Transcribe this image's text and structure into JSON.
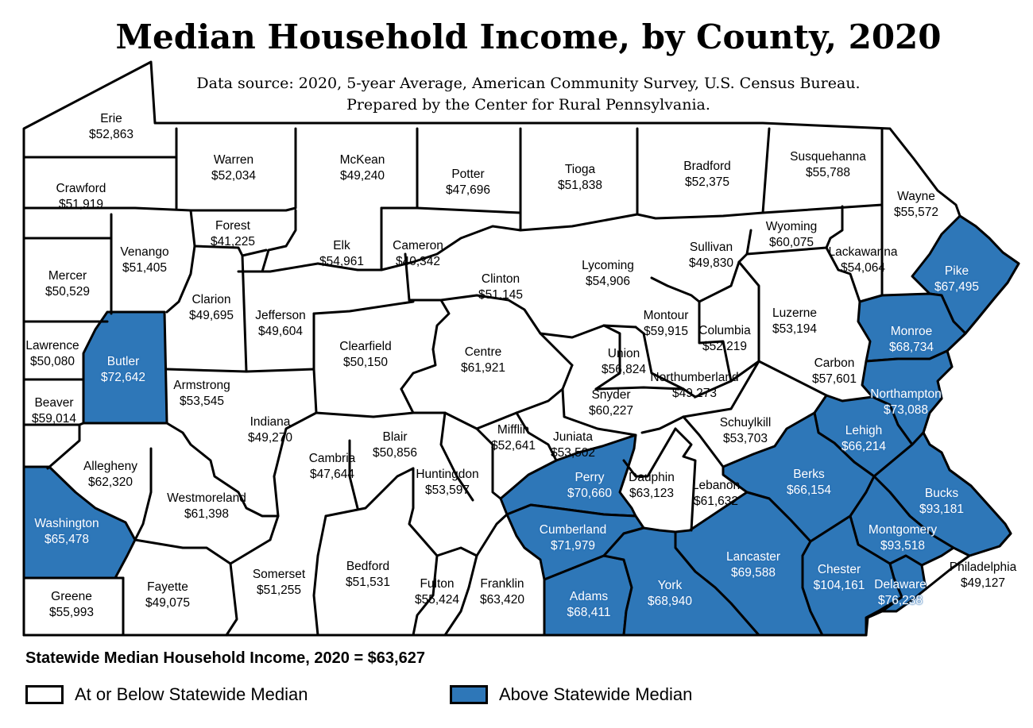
{
  "title": "Median Household Income, by County, 2020",
  "subtitle_line1": "Data source: 2020, 5-year Average, American Community Survey, U.S. Census Bureau.",
  "subtitle_line2": "Prepared by the Center for Rural Pennsylvania.",
  "statewide": "Statewide Median Household Income, 2020 = $63,627",
  "colors": {
    "below": "#ffffff",
    "above": "#2e77b8",
    "border": "#000000"
  },
  "legend": {
    "below": {
      "label": "At or Below Statewide Median",
      "color": "#ffffff"
    },
    "above": {
      "label": "Above Statewide Median",
      "color": "#2e77b8"
    }
  },
  "counties": [
    {
      "name": "Erie",
      "income": "$52,863",
      "above": false
    },
    {
      "name": "Crawford",
      "income": "$51,919",
      "above": false
    },
    {
      "name": "Warren",
      "income": "$52,034",
      "above": false
    },
    {
      "name": "McKean",
      "income": "$49,240",
      "above": false
    },
    {
      "name": "Potter",
      "income": "$47,696",
      "above": false
    },
    {
      "name": "Tioga",
      "income": "$51,838",
      "above": false
    },
    {
      "name": "Bradford",
      "income": "$52,375",
      "above": false
    },
    {
      "name": "Susquehanna",
      "income": "$55,788",
      "above": false
    },
    {
      "name": "Wayne",
      "income": "$55,572",
      "above": false
    },
    {
      "name": "Mercer",
      "income": "$50,529",
      "above": false
    },
    {
      "name": "Venango",
      "income": "$51,405",
      "above": false
    },
    {
      "name": "Forest",
      "income": "$41,225",
      "above": false
    },
    {
      "name": "Elk",
      "income": "$54,961",
      "above": false
    },
    {
      "name": "Cameron",
      "income": "$40,342",
      "above": false
    },
    {
      "name": "Clinton",
      "income": "$51,145",
      "above": false
    },
    {
      "name": "Lycoming",
      "income": "$54,906",
      "above": false
    },
    {
      "name": "Sullivan",
      "income": "$49,830",
      "above": false
    },
    {
      "name": "Wyoming",
      "income": "$60,075",
      "above": false
    },
    {
      "name": "Lackawanna",
      "income": "$54,064",
      "above": false
    },
    {
      "name": "Pike",
      "income": "$67,495",
      "above": true
    },
    {
      "name": "Lawrence",
      "income": "$50,080",
      "above": false
    },
    {
      "name": "Butler",
      "income": "$72,642",
      "above": true
    },
    {
      "name": "Clarion",
      "income": "$49,695",
      "above": false
    },
    {
      "name": "Jefferson",
      "income": "$49,604",
      "above": false
    },
    {
      "name": "Clearfield",
      "income": "$50,150",
      "above": false
    },
    {
      "name": "Centre",
      "income": "$61,921",
      "above": false
    },
    {
      "name": "Montour",
      "income": "$59,915",
      "above": false
    },
    {
      "name": "Columbia",
      "income": "$52,219",
      "above": false
    },
    {
      "name": "Luzerne",
      "income": "$53,194",
      "above": false
    },
    {
      "name": "Monroe",
      "income": "$68,734",
      "above": true
    },
    {
      "name": "Beaver",
      "income": "$59,014",
      "above": false
    },
    {
      "name": "Armstrong",
      "income": "$53,545",
      "above": false
    },
    {
      "name": "Union",
      "income": "$56,824",
      "above": false
    },
    {
      "name": "Northumberland",
      "income": "$49,273",
      "above": false
    },
    {
      "name": "Carbon",
      "income": "$57,601",
      "above": false
    },
    {
      "name": "Snyder",
      "income": "$60,227",
      "above": false
    },
    {
      "name": "Northampton",
      "income": "$73,088",
      "above": true
    },
    {
      "name": "Indiana",
      "income": "$49,270",
      "above": false
    },
    {
      "name": "Mifflin",
      "income": "$52,641",
      "above": false
    },
    {
      "name": "Schuylkill",
      "income": "$53,703",
      "above": false
    },
    {
      "name": "Lehigh",
      "income": "$66,214",
      "above": true
    },
    {
      "name": "Allegheny",
      "income": "$62,320",
      "above": false
    },
    {
      "name": "Blair",
      "income": "$50,856",
      "above": false
    },
    {
      "name": "Juniata",
      "income": "$53,502",
      "above": false
    },
    {
      "name": "Cambria",
      "income": "$47,644",
      "above": false
    },
    {
      "name": "Huntingdon",
      "income": "$53,597",
      "above": false
    },
    {
      "name": "Perry",
      "income": "$70,660",
      "above": true
    },
    {
      "name": "Dauphin",
      "income": "$63,123",
      "above": false
    },
    {
      "name": "Berks",
      "income": "$66,154",
      "above": true
    },
    {
      "name": "Bucks",
      "income": "$93,181",
      "above": true
    },
    {
      "name": "Westmoreland",
      "income": "$61,398",
      "above": false
    },
    {
      "name": "Lebanon",
      "income": "$61,632",
      "above": false
    },
    {
      "name": "Washington",
      "income": "$65,478",
      "above": true
    },
    {
      "name": "Cumberland",
      "income": "$71,979",
      "above": true
    },
    {
      "name": "Montgomery",
      "income": "$93,518",
      "above": true
    },
    {
      "name": "Lancaster",
      "income": "$69,588",
      "above": true
    },
    {
      "name": "Somerset",
      "income": "$51,255",
      "above": false
    },
    {
      "name": "Bedford",
      "income": "$51,531",
      "above": false
    },
    {
      "name": "Chester",
      "income": "$104,161",
      "above": true
    },
    {
      "name": "Philadelphia",
      "income": "$49,127",
      "above": false
    },
    {
      "name": "Greene",
      "income": "$55,993",
      "above": false
    },
    {
      "name": "Fayette",
      "income": "$49,075",
      "above": false
    },
    {
      "name": "Fulton",
      "income": "$55,424",
      "above": false
    },
    {
      "name": "Franklin",
      "income": "$63,420",
      "above": false
    },
    {
      "name": "Adams",
      "income": "$68,411",
      "above": true
    },
    {
      "name": "York",
      "income": "$68,940",
      "above": true
    },
    {
      "name": "Delaware",
      "income": "$76,238",
      "above": true
    }
  ]
}
